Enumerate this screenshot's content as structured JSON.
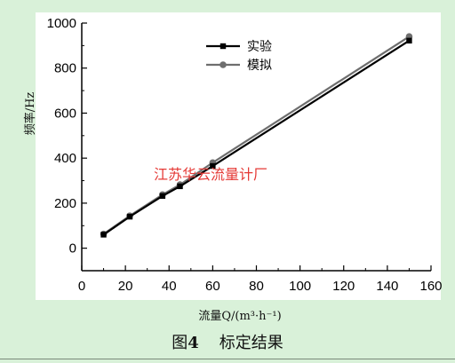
{
  "caption": {
    "prefix": "图",
    "number": "4",
    "title": "标定结果"
  },
  "watermark": {
    "text": "江苏华云流量计厂",
    "color": "#e53935"
  },
  "chart_data": {
    "type": "line",
    "xlabel": "流量Q/(m³·h⁻¹)",
    "ylabel": "频率/Hz",
    "xlim": [
      0,
      160
    ],
    "ylim": [
      -100,
      1000
    ],
    "xticks": [
      0,
      20,
      40,
      60,
      80,
      100,
      120,
      140,
      160
    ],
    "yticks": [
      0,
      200,
      400,
      600,
      800,
      1000
    ],
    "grid": false,
    "legend_position": "top-center",
    "series": [
      {
        "name": "实验",
        "marker": "square",
        "color": "#000000",
        "x": [
          10,
          22,
          37,
          45,
          60,
          150
        ],
        "y": [
          60,
          140,
          232,
          275,
          365,
          922
        ]
      },
      {
        "name": "模拟",
        "marker": "circle",
        "color": "#6e6e6e",
        "x": [
          10,
          22,
          37,
          45,
          60,
          150
        ],
        "y": [
          63,
          144,
          238,
          282,
          380,
          940
        ]
      }
    ]
  }
}
